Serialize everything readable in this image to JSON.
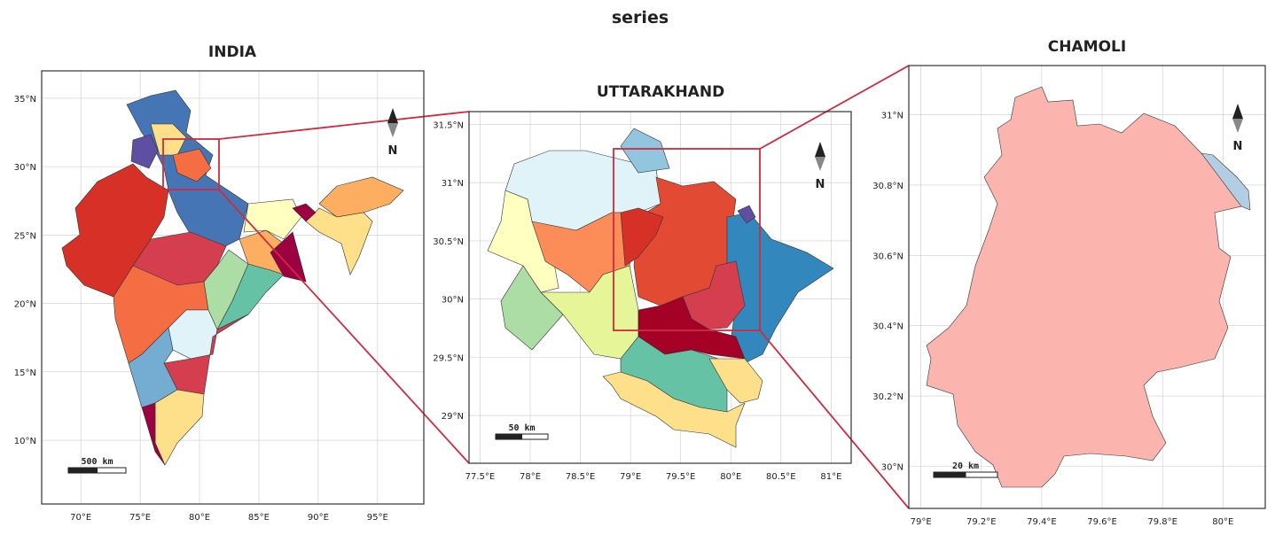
{
  "title": "series",
  "panels": [
    {
      "title": "INDIA",
      "xlim": [
        66.7,
        98.9
      ],
      "ylim": [
        5.34,
        37.0
      ],
      "xticks": [
        {
          "value": 70,
          "label": "70°E"
        },
        {
          "value": 75,
          "label": "75°E"
        },
        {
          "value": 80,
          "label": "80°E"
        },
        {
          "value": 85,
          "label": "85°E"
        },
        {
          "value": 90,
          "label": "90°E"
        },
        {
          "value": 95,
          "label": "95°E"
        }
      ],
      "yticks": [
        {
          "value": 10,
          "label": "10°N"
        },
        {
          "value": 15,
          "label": "15°N"
        },
        {
          "value": 20,
          "label": "20°N"
        },
        {
          "value": 25,
          "label": "25°N"
        },
        {
          "value": 30,
          "label": "30°N"
        },
        {
          "value": 35,
          "label": "35°N"
        }
      ],
      "scale_bar": "500 km",
      "north": "N"
    },
    {
      "title": "UTTARAKHAND",
      "xlim": [
        77.39,
        81.2
      ],
      "ylim": [
        28.59,
        31.61
      ],
      "xticks": [
        {
          "value": 77.5,
          "label": "77.5°E"
        },
        {
          "value": 78,
          "label": "78°E"
        },
        {
          "value": 78.5,
          "label": "78.5°E"
        },
        {
          "value": 79,
          "label": "79°E"
        },
        {
          "value": 79.5,
          "label": "79.5°E"
        },
        {
          "value": 80,
          "label": "80°E"
        },
        {
          "value": 80.5,
          "label": "80.5°E"
        },
        {
          "value": 81,
          "label": "81°E"
        }
      ],
      "yticks": [
        {
          "value": 29,
          "label": "29°N"
        },
        {
          "value": 29.5,
          "label": "29.5°N"
        },
        {
          "value": 30,
          "label": "30°N"
        },
        {
          "value": 30.5,
          "label": "30.5°N"
        },
        {
          "value": 31,
          "label": "31°N"
        },
        {
          "value": 31.5,
          "label": "31.5°N"
        }
      ],
      "scale_bar": "50 km",
      "north": "N"
    },
    {
      "title": "CHAMOLI",
      "xlim": [
        78.96,
        80.14
      ],
      "ylim": [
        29.88,
        31.14
      ],
      "xticks": [
        {
          "value": 79,
          "label": "79°E"
        },
        {
          "value": 79.2,
          "label": "79.2°E"
        },
        {
          "value": 79.4,
          "label": "79.4°E"
        },
        {
          "value": 79.6,
          "label": "79.6°E"
        },
        {
          "value": 79.8,
          "label": "79.8°E"
        },
        {
          "value": 80,
          "label": "80°E"
        }
      ],
      "yticks": [
        {
          "value": 30,
          "label": "30°N"
        },
        {
          "value": 30.2,
          "label": "30.2°N"
        },
        {
          "value": 30.4,
          "label": "30.4°N"
        },
        {
          "value": 30.6,
          "label": "30.6°N"
        },
        {
          "value": 30.8,
          "label": "30.8°N"
        },
        {
          "value": 31,
          "label": "31°N"
        }
      ],
      "scale_bar": "20 km",
      "north": "N"
    }
  ]
}
